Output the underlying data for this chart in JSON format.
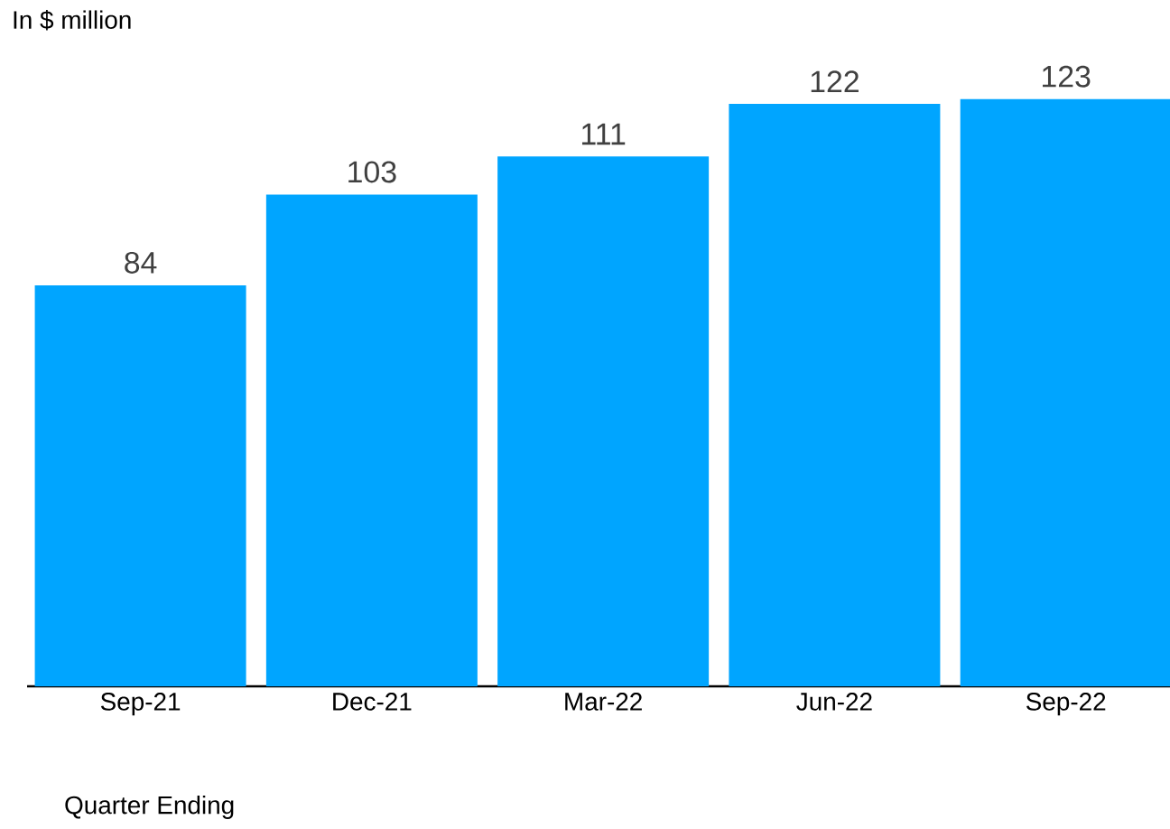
{
  "chart_data": {
    "type": "bar",
    "ylabel": "In $ million",
    "xlabel": "Quarter Ending",
    "categories": [
      "Sep-21",
      "Dec-21",
      "Mar-22",
      "Jun-22",
      "Sep-22"
    ],
    "values": [
      84,
      103,
      111,
      122,
      123
    ],
    "color": "#00a5ff",
    "data_labels": true
  }
}
